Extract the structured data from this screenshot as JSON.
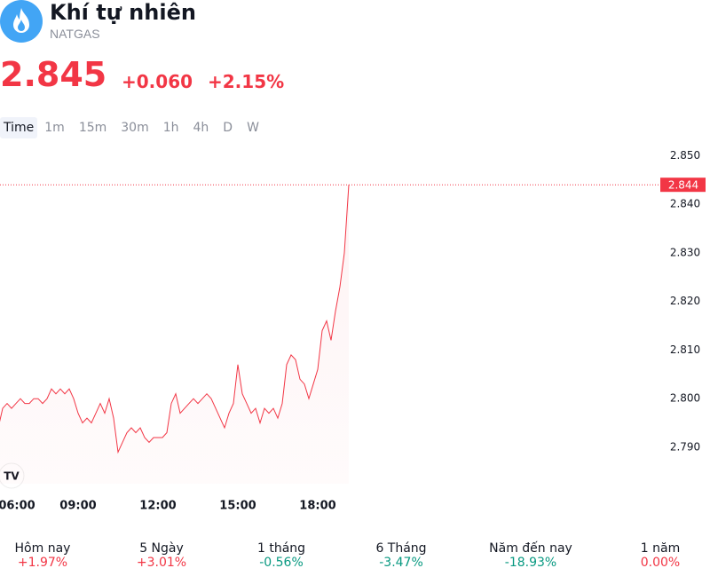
{
  "header": {
    "title": "Khí tự nhiên",
    "symbol": "NATGAS",
    "price": "2.845",
    "change": "+0.060",
    "change_percent": "+2.15%"
  },
  "timeframes": {
    "items": [
      "Time",
      "1m",
      "15m",
      "30m",
      "1h",
      "4h",
      "D",
      "W"
    ],
    "active": "Time"
  },
  "chart_data": {
    "type": "line",
    "color": "#f23645",
    "x": [
      "06:00",
      "06:10",
      "06:20",
      "06:30",
      "06:40",
      "06:50",
      "07:00",
      "07:10",
      "07:20",
      "07:30",
      "07:40",
      "07:50",
      "08:00",
      "08:10",
      "08:20",
      "08:30",
      "08:40",
      "08:50",
      "09:00",
      "09:10",
      "09:20",
      "09:30",
      "09:40",
      "09:50",
      "10:00",
      "10:10",
      "10:20",
      "10:30",
      "10:40",
      "10:50",
      "11:00",
      "11:10",
      "11:20",
      "11:30",
      "11:40",
      "11:50",
      "12:00",
      "12:10",
      "12:20",
      "12:30",
      "12:40",
      "12:50",
      "13:00",
      "13:10",
      "13:20",
      "13:30",
      "13:40",
      "13:50",
      "14:00",
      "14:10",
      "14:20",
      "14:30",
      "14:40",
      "14:50",
      "15:00",
      "15:10",
      "15:20",
      "15:30",
      "15:40",
      "15:50",
      "16:00",
      "16:10",
      "16:20",
      "16:30",
      "16:40",
      "16:50",
      "17:00",
      "17:10",
      "17:20",
      "17:30",
      "17:40",
      "17:50",
      "18:00",
      "18:10",
      "18:20",
      "18:30",
      "18:40",
      "18:50",
      "19:00",
      "19:10"
    ],
    "values": [
      2.794,
      2.798,
      2.799,
      2.798,
      2.799,
      2.8,
      2.799,
      2.799,
      2.8,
      2.8,
      2.799,
      2.8,
      2.802,
      2.801,
      2.802,
      2.801,
      2.802,
      2.8,
      2.797,
      2.795,
      2.796,
      2.795,
      2.797,
      2.799,
      2.797,
      2.8,
      2.796,
      2.789,
      2.791,
      2.793,
      2.794,
      2.793,
      2.794,
      2.792,
      2.791,
      2.792,
      2.792,
      2.792,
      2.793,
      2.799,
      2.801,
      2.797,
      2.798,
      2.799,
      2.8,
      2.799,
      2.8,
      2.801,
      2.8,
      2.798,
      2.796,
      2.794,
      2.797,
      2.799,
      2.807,
      2.801,
      2.799,
      2.797,
      2.798,
      2.795,
      2.798,
      2.797,
      2.798,
      2.796,
      2.799,
      2.807,
      2.809,
      2.808,
      2.804,
      2.803,
      2.8,
      2.803,
      2.806,
      2.814,
      2.816,
      2.812,
      2.818,
      2.823,
      2.83,
      2.844
    ],
    "current_value": 2.844,
    "xlim": [
      "06:00",
      "20:00"
    ],
    "xticks": [
      "06:00",
      "09:00",
      "12:00",
      "15:00",
      "18:00"
    ],
    "ylim": [
      2.7825,
      2.8528
    ],
    "yticks": [
      {
        "value": 2.79,
        "label": "2.790"
      },
      {
        "value": 2.8,
        "label": "2.800"
      },
      {
        "value": 2.81,
        "label": "2.810"
      },
      {
        "value": 2.82,
        "label": "2.820"
      },
      {
        "value": 2.83,
        "label": "2.830"
      },
      {
        "value": 2.84,
        "label": "2.840"
      },
      {
        "value": 2.85,
        "label": "2.850"
      }
    ]
  },
  "performance": [
    {
      "label": "Hôm nay",
      "value": "+1.97%",
      "color": "#f23645"
    },
    {
      "label": "5 Ngày",
      "value": "+3.01%",
      "color": "#f23645"
    },
    {
      "label": "1 tháng",
      "value": "-0.56%",
      "color": "#089981"
    },
    {
      "label": "6 Tháng",
      "value": "-3.47%",
      "color": "#089981"
    },
    {
      "label": "Năm đến nay",
      "value": "-18.93%",
      "color": "#089981"
    },
    {
      "label": "1 năm",
      "value": "0.00%",
      "color": "#f23645"
    }
  ]
}
